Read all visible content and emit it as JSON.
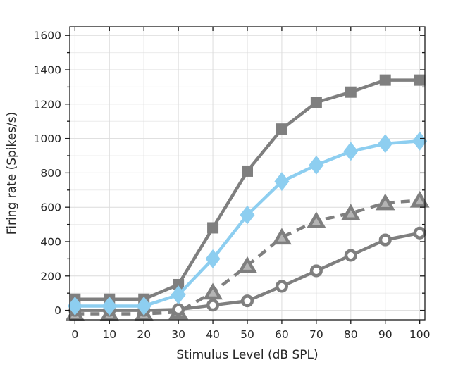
{
  "chart_data": {
    "type": "line",
    "title": "",
    "xlabel": "Stimulus Level (dB SPL)",
    "ylabel": "Firing rate (Spikes/s)",
    "x": [
      0,
      10,
      20,
      30,
      40,
      50,
      60,
      70,
      80,
      90,
      100
    ],
    "xlim": [
      -1.5,
      101.5
    ],
    "ylim": [
      -55,
      1650
    ],
    "x_ticks": [
      0,
      10,
      20,
      30,
      40,
      50,
      60,
      70,
      80,
      90,
      100
    ],
    "y_ticks_labeled": [
      0,
      200,
      400,
      600,
      800,
      1000,
      1200,
      1400,
      1600
    ],
    "y_minor_step": 100,
    "grid": "on",
    "legend_position": "none",
    "series": [
      {
        "name": "gray-filled-squares",
        "marker": "square",
        "line": "solid",
        "color": "#7f7f7f",
        "fill": "#7f7f7f",
        "values": [
          65,
          65,
          65,
          150,
          480,
          810,
          1055,
          1210,
          1270,
          1340,
          1340
        ]
      },
      {
        "name": "gray-triangles-dashed",
        "marker": "triangle",
        "line": "dashed",
        "color": "#7f7f7f",
        "fill": "#b4b4b4",
        "values": [
          -20,
          -20,
          -20,
          -10,
          105,
          260,
          425,
          520,
          565,
          625,
          640
        ]
      },
      {
        "name": "gray-open-circles",
        "marker": "circle",
        "line": "solid",
        "color": "#7f7f7f",
        "fill": "#ffffff",
        "values": [
          0,
          0,
          0,
          5,
          30,
          55,
          140,
          230,
          320,
          410,
          450
        ]
      },
      {
        "name": "blue-filled-diamonds",
        "marker": "diamond",
        "line": "solid",
        "color": "#8dcef0",
        "fill": "#8dcef0",
        "values": [
          25,
          25,
          25,
          90,
          300,
          555,
          750,
          845,
          925,
          970,
          985
        ]
      }
    ],
    "colors": {
      "axis": "#1a1a1a",
      "text": "#262626",
      "grid_major": "#dcdcdc",
      "grid_minor": "#ececec",
      "background": "#ffffff"
    }
  }
}
